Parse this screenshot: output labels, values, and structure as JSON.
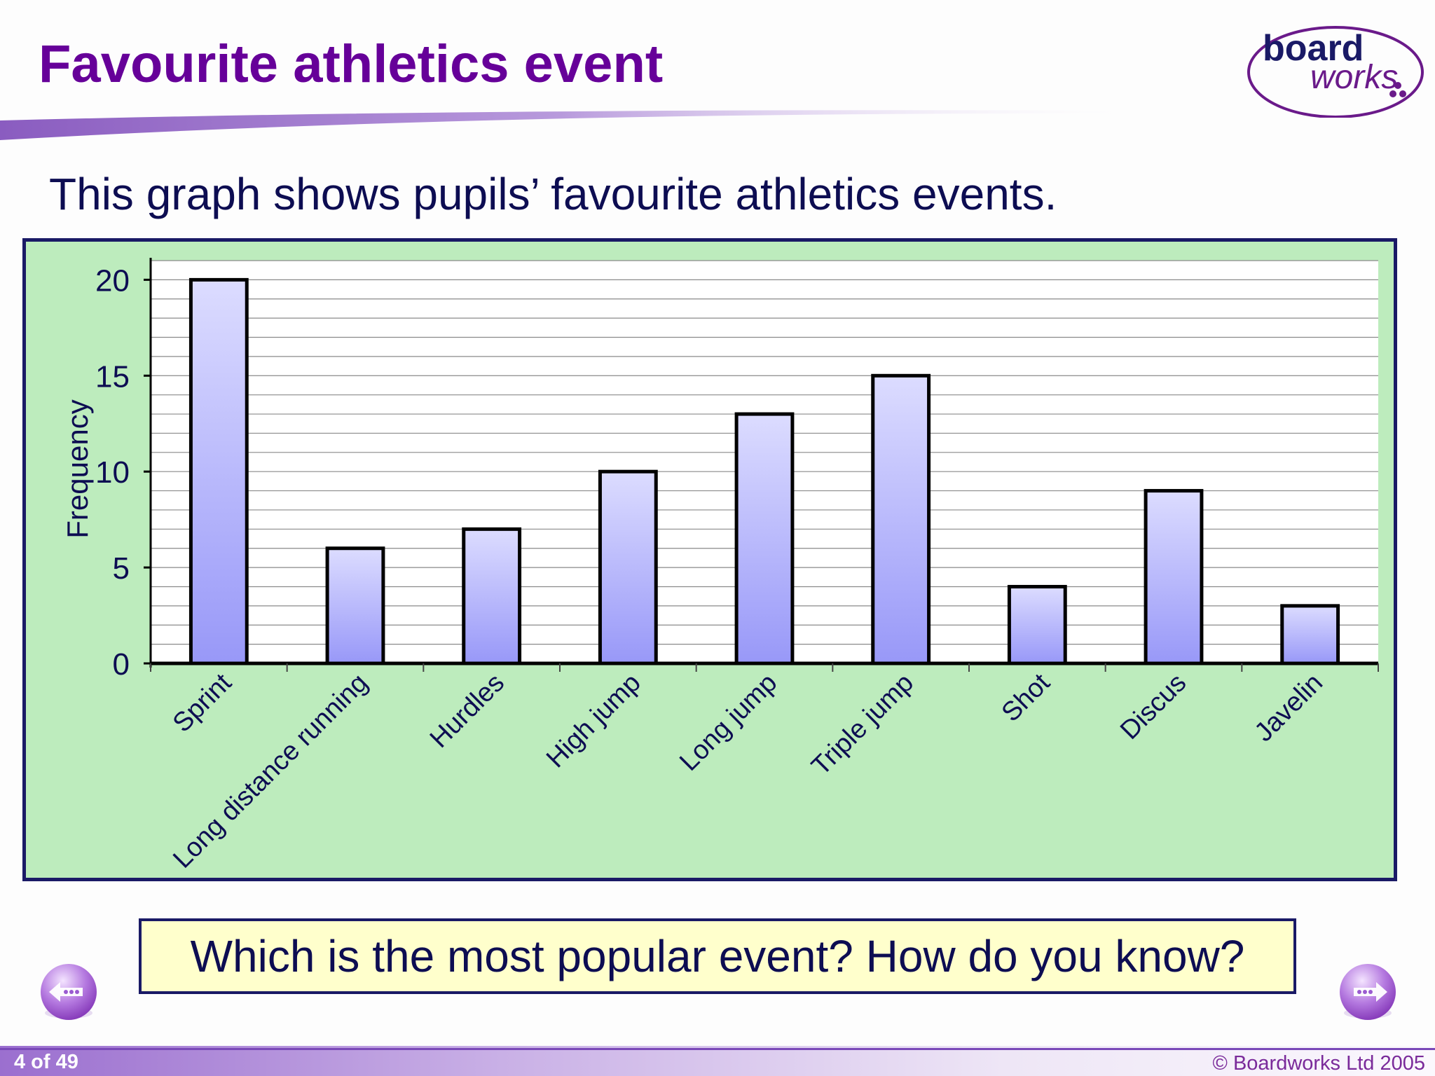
{
  "slide": {
    "title": "Favourite athletics event",
    "subtitle": "This graph shows pupils’ favourite athletics events.",
    "question": "Which is the most popular event? How do you know?"
  },
  "logo": {
    "line1": "board",
    "line2": "works"
  },
  "footer": {
    "page_counter": "4 of 49",
    "copyright": "© Boardworks Ltd 2005"
  },
  "colors": {
    "title": "#660099",
    "panel": "#bdecbd",
    "bar_top": "#dcdcff",
    "bar_bottom": "#9898f8",
    "text": "#0d0d52",
    "question_bg": "#ffffcc"
  },
  "chart_data": {
    "type": "bar",
    "categories": [
      "Sprint",
      "Long distance running",
      "Hurdles",
      "High jump",
      "Long jump",
      "Triple jump",
      "Shot",
      "Discus",
      "Javelin"
    ],
    "values": [
      20,
      6,
      7,
      10,
      13,
      15,
      4,
      9,
      3
    ],
    "ylabel": "Frequency",
    "xlabel": "",
    "ylim": [
      0,
      21
    ],
    "yticks": [
      0,
      5,
      10,
      15,
      20
    ],
    "minor_gridline_step": 1,
    "grid": true
  }
}
